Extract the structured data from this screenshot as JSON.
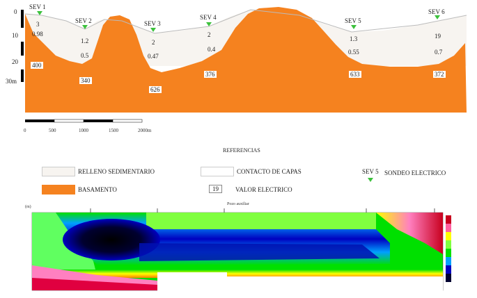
{
  "profile": {
    "sev_stations": [
      {
        "label": "SEV 1",
        "top": "3",
        "mid": "0.98",
        "deep": "400"
      },
      {
        "label": "SEV 2",
        "top": "1.2",
        "mid": "0.5",
        "deep": "340"
      },
      {
        "label": "SEV 3",
        "top": "2",
        "mid": "0.47",
        "deep": "626"
      },
      {
        "label": "SEV 4",
        "top": "2",
        "mid": "0.4",
        "deep": "376"
      },
      {
        "label": "SEV 5",
        "top": "1.3",
        "mid": "0.55",
        "deep": "633"
      },
      {
        "label": "SEV 6",
        "top": "19",
        "mid": "0.7",
        "deep": "372"
      }
    ],
    "depth_ticks": [
      "0",
      "10",
      "20",
      "30m"
    ],
    "distance_ticks": [
      "0",
      "500",
      "1000",
      "1500",
      "2000m"
    ]
  },
  "legend": {
    "title": "REFERENCIAS",
    "relleno": "RELLENO SEDIMENTARIO",
    "contacto": "CONTACTO DE CAPAS",
    "sev_symbol": "SEV 5",
    "sondeo": "SONDEO ELECTRICO",
    "basamento": "BASAMENTO",
    "valor_box": "19",
    "valor": "VALOR ELECTRICO"
  },
  "tomography": {
    "top_note": "Pozo auxiliar",
    "depth_unit": "(m)",
    "colors": {
      "basement": "#f5821f",
      "high": "#c8001e",
      "mid": "#00e000",
      "low": "#000080",
      "lowest": "#000000"
    }
  }
}
